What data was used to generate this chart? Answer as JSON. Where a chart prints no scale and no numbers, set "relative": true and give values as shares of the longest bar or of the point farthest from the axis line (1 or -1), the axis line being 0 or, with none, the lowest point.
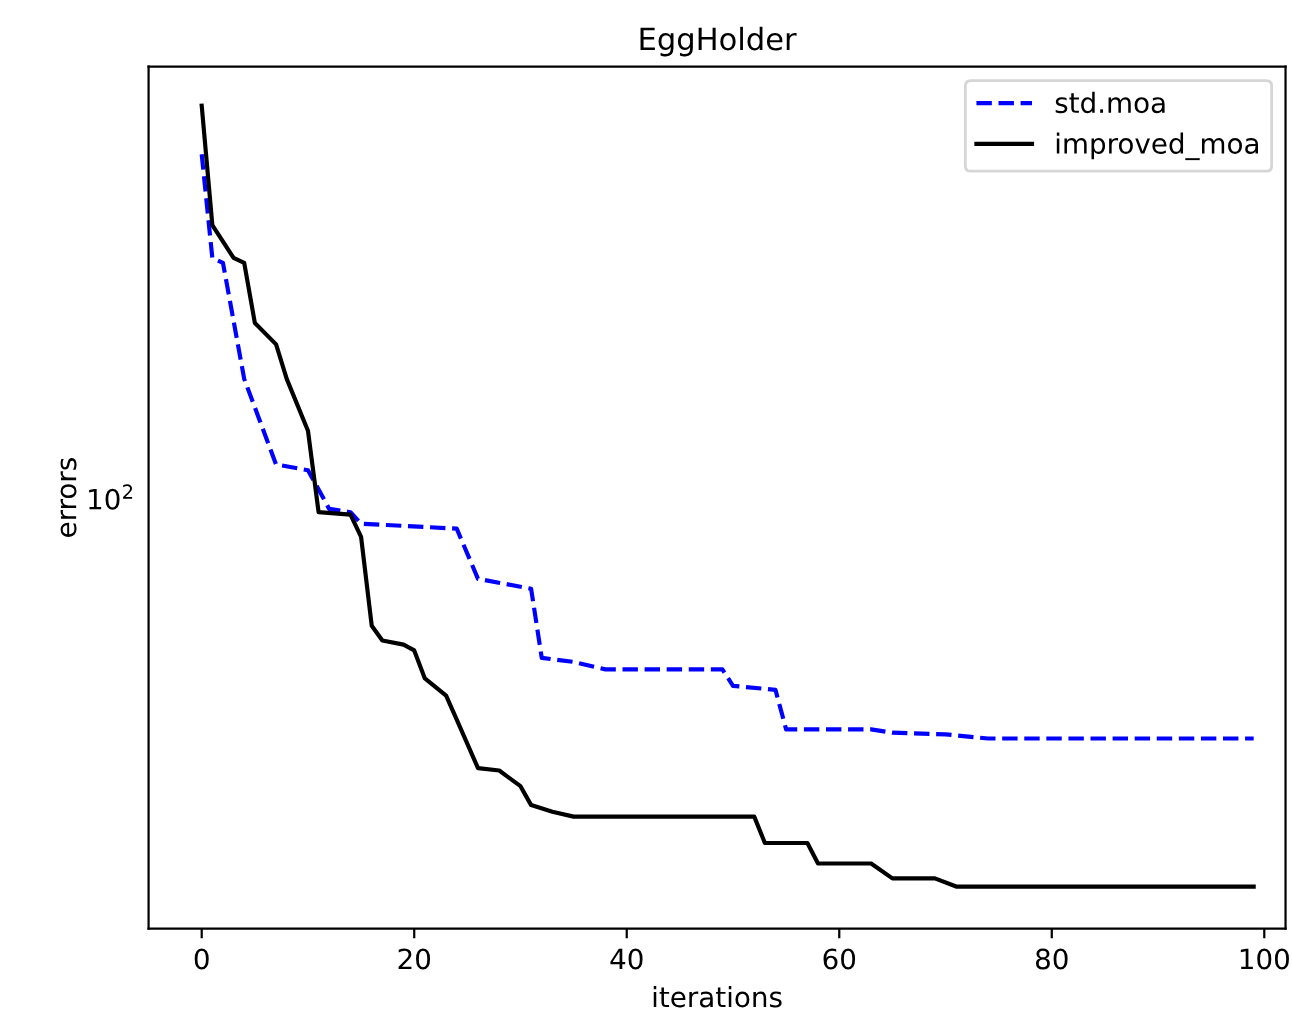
{
  "chart_data": {
    "type": "line",
    "title": "EggHolder",
    "xlabel": "iterations",
    "ylabel": "errors",
    "relative": true,
    "xlim": [
      -5,
      102
    ],
    "xticks": [
      0,
      20,
      40,
      60,
      80,
      100
    ],
    "annotations": [
      "10$^{2}$"
    ],
    "legend": "top right",
    "series": [
      {
        "name": "std.moa",
        "color": "#0000ff",
        "line_style": "dashed",
        "x": [
          0,
          1,
          2,
          4,
          7,
          10,
          12,
          14,
          15,
          24,
          26,
          31,
          32,
          35,
          38,
          49,
          50,
          54,
          55,
          63,
          65,
          70,
          74,
          99
        ],
        "values": [
          0.941,
          0.815,
          0.809,
          0.668,
          0.564,
          0.557,
          0.51,
          0.506,
          0.492,
          0.486,
          0.425,
          0.413,
          0.329,
          0.324,
          0.315,
          0.315,
          0.295,
          0.29,
          0.242,
          0.242,
          0.238,
          0.236,
          0.231,
          0.231
        ]
      },
      {
        "name": "improved_moa",
        "color": "#000000",
        "line_style": "solid",
        "x": [
          0,
          1,
          3,
          4,
          5,
          7,
          8,
          10,
          11,
          14,
          15,
          16,
          17,
          19,
          20,
          21,
          23,
          24,
          26,
          28,
          30,
          31,
          33,
          35,
          52,
          53,
          57,
          58,
          63,
          65,
          69,
          71,
          99
        ],
        "values": [
          1,
          0.855,
          0.815,
          0.809,
          0.736,
          0.71,
          0.668,
          0.605,
          0.506,
          0.503,
          0.476,
          0.368,
          0.35,
          0.345,
          0.338,
          0.304,
          0.283,
          0.254,
          0.195,
          0.192,
          0.173,
          0.15,
          0.142,
          0.136,
          0.136,
          0.104,
          0.104,
          0.079,
          0.079,
          0.061,
          0.061,
          0.051,
          0.051
        ]
      }
    ]
  }
}
